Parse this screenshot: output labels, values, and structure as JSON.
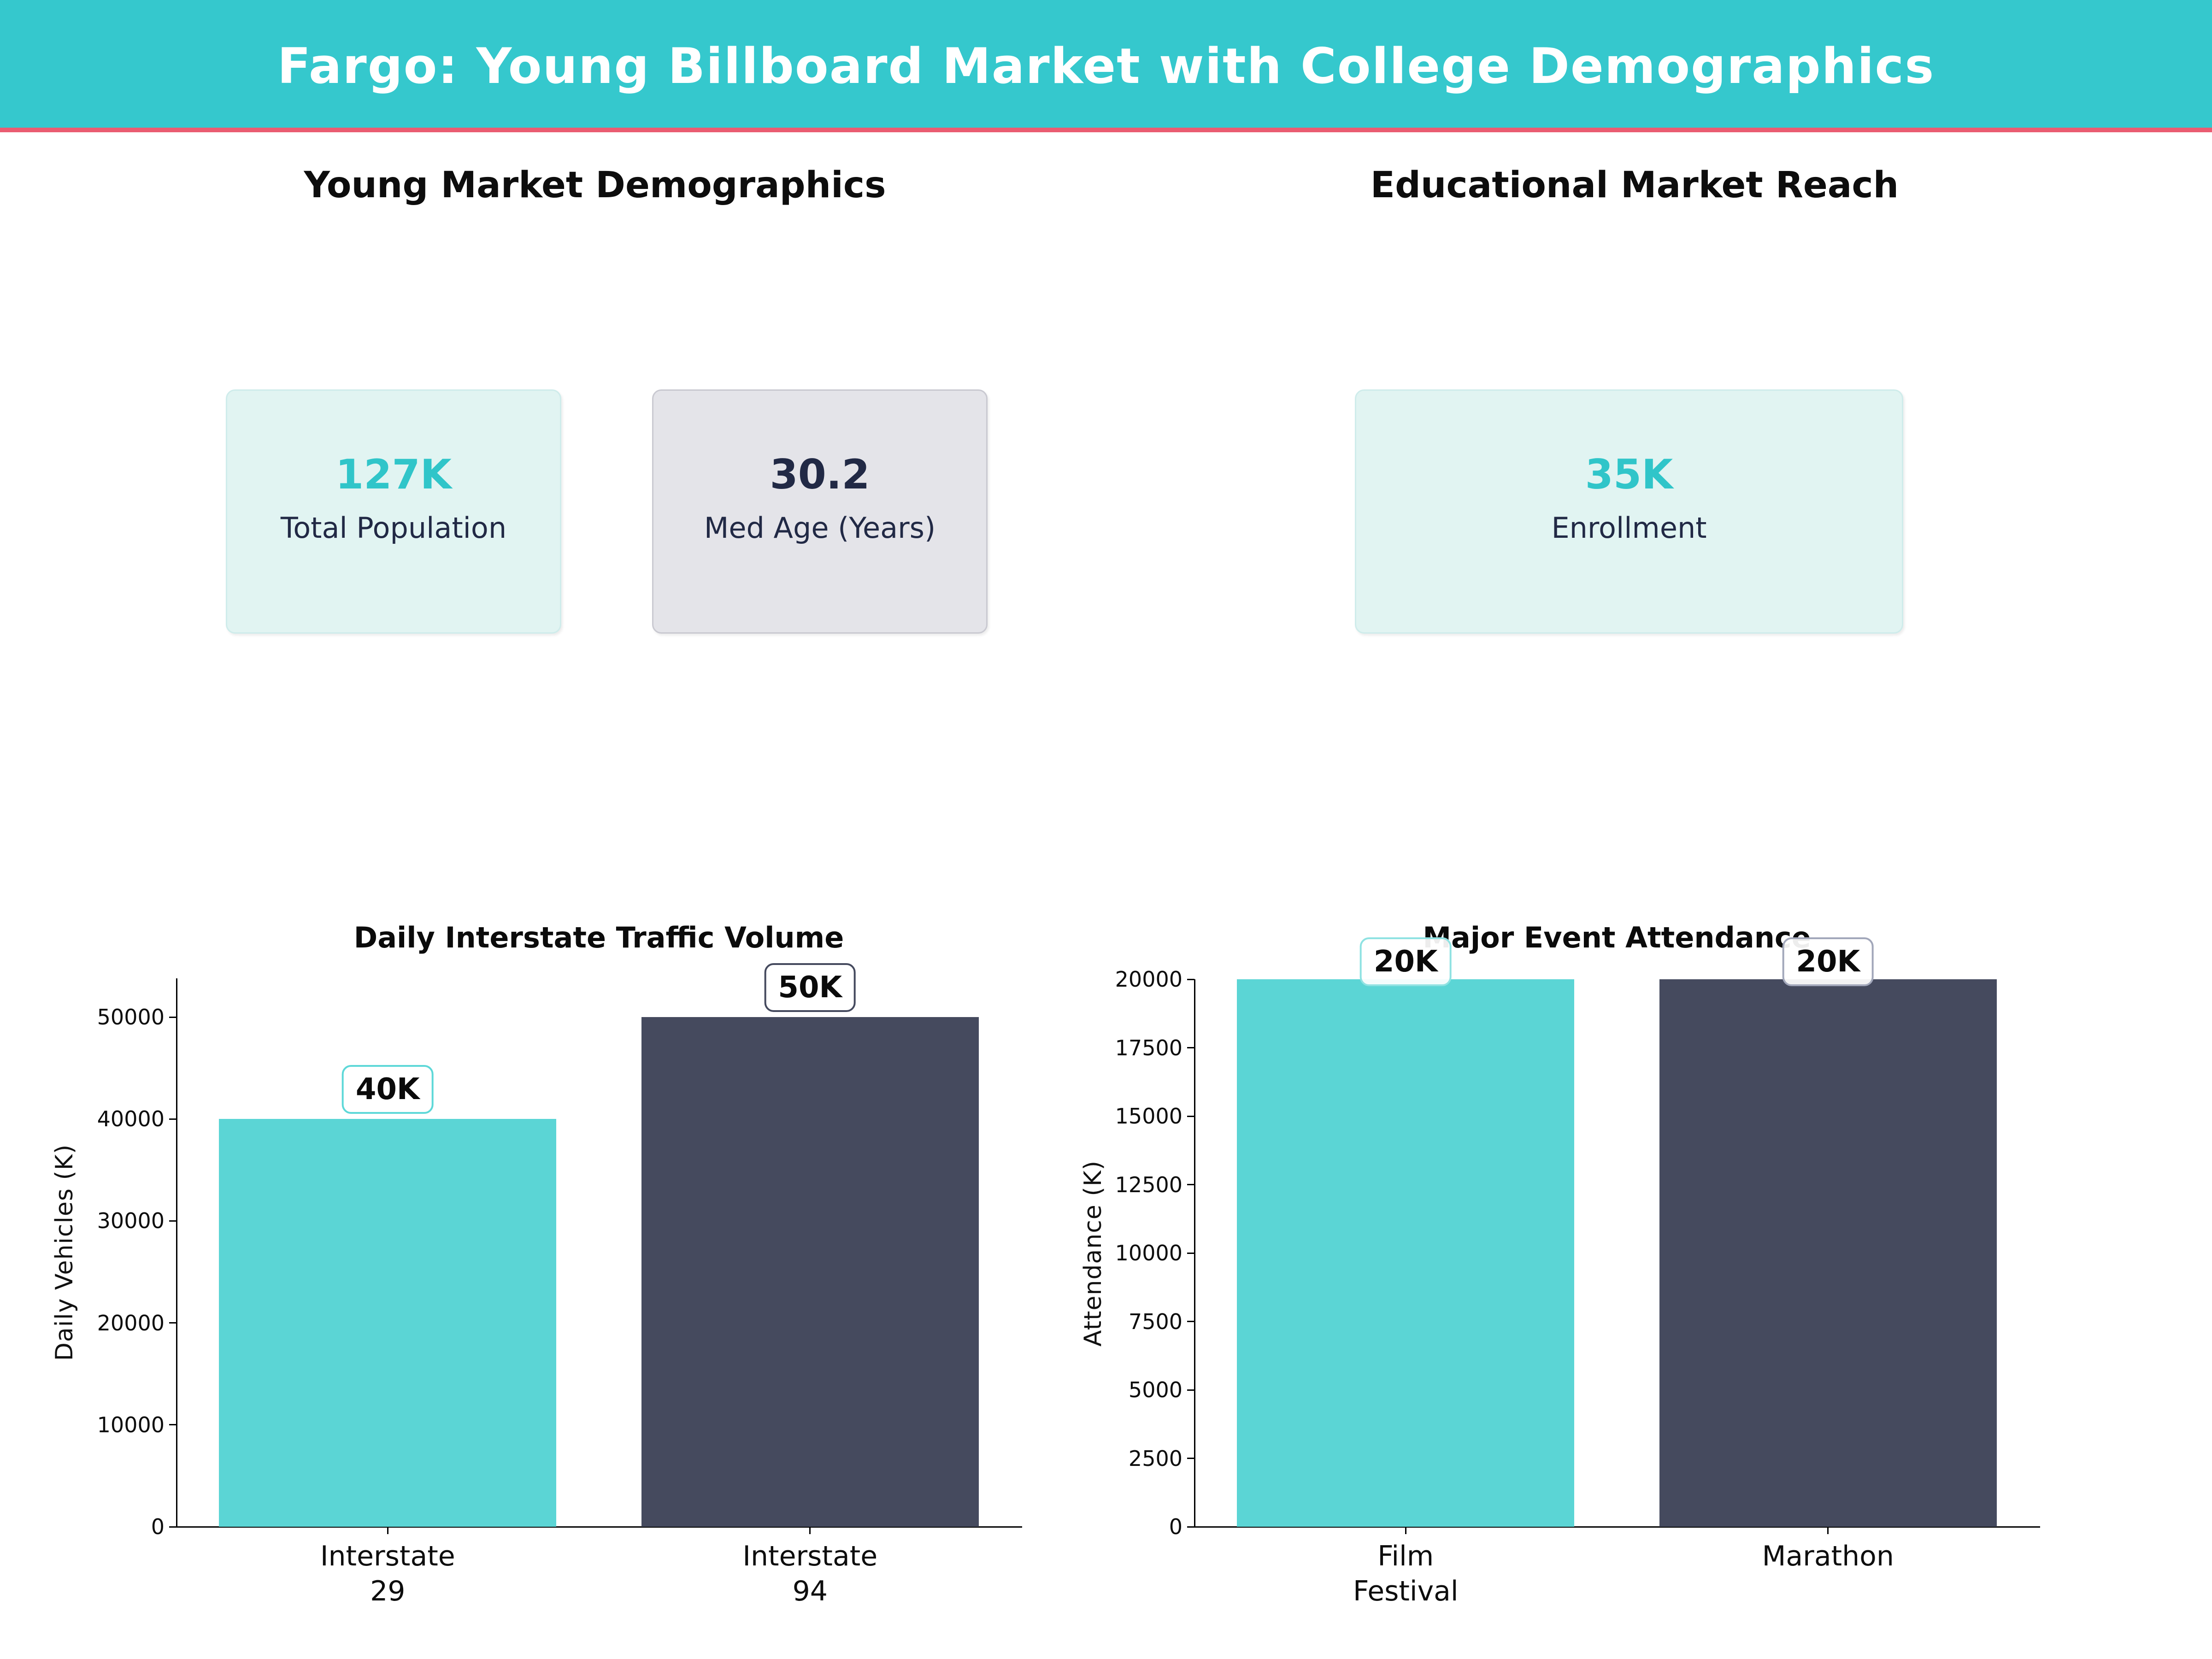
{
  "header": {
    "title": "Fargo: Young Billboard Market with College Demographics",
    "bg_color": "#35c8cd",
    "accent_color": "#ea5c71"
  },
  "sections": {
    "left_title": "Young Market Demographics",
    "right_title": "Educational Market Reach"
  },
  "cards": [
    {
      "value": "127K",
      "label": "Total Population",
      "value_color": "#30c5c9",
      "bg": "#e1f4f2",
      "border": "#cfeceb"
    },
    {
      "value": "30.2",
      "label": "Med Age (Years)",
      "value_color": "#212945",
      "bg": "#e4e4e9",
      "border": "#c9c9d1"
    },
    {
      "value": "35K",
      "label": "Enrollment",
      "value_color": "#30c5c9",
      "bg": "#e1f4f2",
      "border": "#cfeceb"
    }
  ],
  "chart_data": [
    {
      "type": "bar",
      "title": "Daily Interstate Traffic Volume",
      "ylabel": "Daily Vehicles (K)",
      "categories": [
        [
          "Interstate",
          "29"
        ],
        [
          "Interstate",
          "94"
        ]
      ],
      "values": [
        40000,
        50000
      ],
      "bar_colors": [
        "#5bd5d5",
        "#454a5e"
      ],
      "bar_labels": [
        "40K",
        "50K"
      ],
      "label_border_colors": [
        "#5ed8d8",
        "#454a5e"
      ],
      "yticks": [
        0,
        10000,
        20000,
        30000,
        40000,
        50000
      ],
      "ylim": [
        0,
        53800
      ],
      "grid": false,
      "legend": "none"
    },
    {
      "type": "bar",
      "title": "Major Event Attendance",
      "ylabel": "Attendance (K)",
      "categories": [
        [
          "Film",
          "Festival"
        ],
        [
          "Marathon"
        ]
      ],
      "values": [
        20000,
        20000
      ],
      "bar_colors": [
        "#5bd5d5",
        "#454a5e"
      ],
      "bar_labels": [
        "20K",
        "20K"
      ],
      "label_border_colors": [
        "#8fe2e2",
        "#a2a7ba"
      ],
      "yticks": [
        0,
        2500,
        5000,
        7500,
        10000,
        12500,
        15000,
        17500,
        20000
      ],
      "ylim": [
        0,
        20000
      ],
      "grid": false,
      "legend": "none"
    }
  ]
}
